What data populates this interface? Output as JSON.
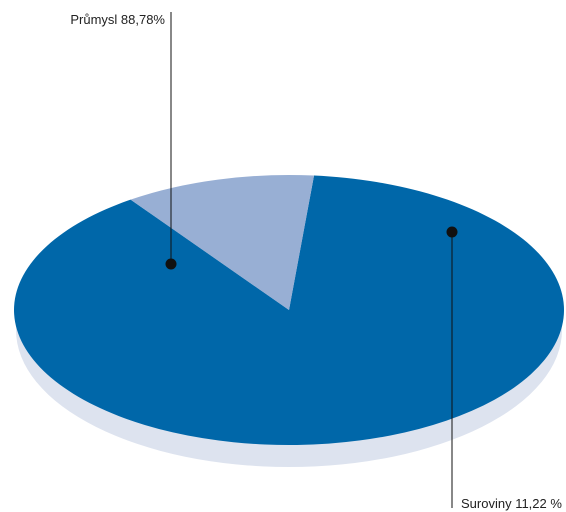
{
  "chart_data": {
    "type": "pie",
    "style": "3d-tilted",
    "slices": [
      {
        "label": "Průmysl 88,78%",
        "value": 88.78,
        "color": "#0067A9"
      },
      {
        "label": "Suroviny 11,22 %",
        "value": 11.22,
        "color": "#98AFD4"
      }
    ],
    "shadow_color": "#DDE3EF",
    "leader_color": "#111111"
  }
}
